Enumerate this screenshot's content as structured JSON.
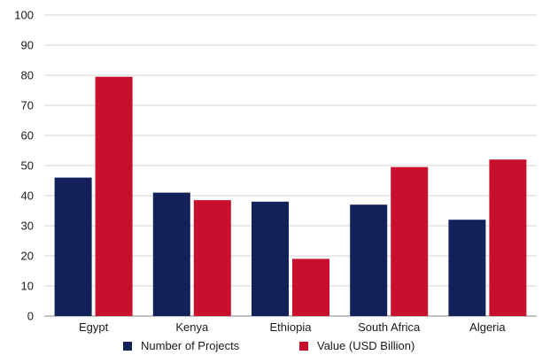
{
  "chart_data": {
    "type": "bar",
    "categories": [
      "Egypt",
      "Kenya",
      "Ethiopia",
      "South Africa",
      "Algeria"
    ],
    "series": [
      {
        "name": "Number of Projects",
        "values": [
          46,
          41,
          38,
          37,
          32
        ],
        "color": "#13215b"
      },
      {
        "name": "Value (USD Billion)",
        "values": [
          79.5,
          38.5,
          19,
          49.5,
          52
        ],
        "color": "#c8102e"
      }
    ],
    "y_ticks": [
      "0",
      "10",
      "20",
      "30",
      "40",
      "50",
      "60",
      "70",
      "80",
      "90",
      "100"
    ],
    "ylim": [
      0,
      100
    ],
    "grid": true,
    "legend_position": "bottom-center"
  }
}
